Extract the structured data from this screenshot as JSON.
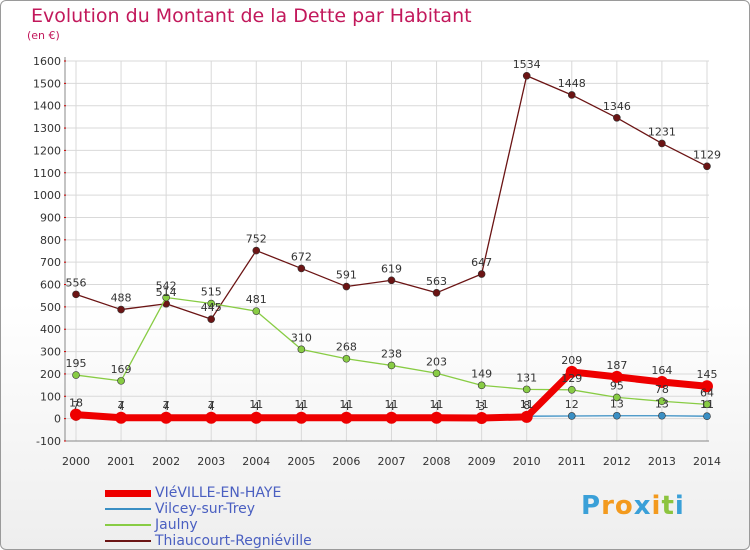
{
  "title": "Evolution du Montant de la Dette par Habitant",
  "subtitle": "(en €)",
  "brand": {
    "text": "Proxiti",
    "letters": [
      "P",
      "r",
      "o",
      "x",
      "i",
      "t",
      "i"
    ],
    "colors": [
      "#3aa0d8",
      "#f39a1e",
      "#f39a1e",
      "#3aa0d8",
      "#f39a1e",
      "#8cc43f",
      "#3aa0d8"
    ]
  },
  "chart_data": {
    "type": "line",
    "title": "Evolution du Montant de la Dette par Habitant",
    "ylabel": "(en €)",
    "xlabel": "",
    "x": [
      2000,
      2001,
      2002,
      2003,
      2004,
      2005,
      2006,
      2007,
      2008,
      2009,
      2010,
      2011,
      2012,
      2013,
      2014
    ],
    "ylim": [
      -100,
      1600
    ],
    "yticks": [
      -100,
      0,
      100,
      200,
      300,
      400,
      500,
      600,
      700,
      800,
      900,
      1000,
      1100,
      1200,
      1300,
      1400,
      1500,
      1600
    ],
    "grid": true,
    "legend": "bottom-left",
    "series": [
      {
        "name": "VIéVILLE-EN-HAYE",
        "color": "#ee0000",
        "values": [
          18,
          4,
          4,
          4,
          4,
          4,
          4,
          4,
          4,
          3,
          8,
          209,
          187,
          164,
          145
        ],
        "labels": [
          "18",
          "4",
          "4",
          "4",
          "4",
          "4",
          "4",
          "4",
          "4",
          "3",
          "8",
          "209",
          "187",
          "164",
          "145"
        ]
      },
      {
        "name": "Vilcey-sur-Trey",
        "color": "#3a8fc4",
        "values": [
          7,
          7,
          7,
          7,
          11,
          11,
          11,
          11,
          11,
          11,
          11,
          12,
          13,
          13,
          11
        ],
        "labels": [
          "7",
          "7",
          "7",
          "7",
          "11",
          "11",
          "11",
          "11",
          "11",
          "11",
          "11",
          "12",
          "13",
          "13",
          "11"
        ]
      },
      {
        "name": "Jaulny",
        "color": "#88cc44",
        "values": [
          195,
          169,
          542,
          515,
          481,
          310,
          268,
          238,
          203,
          149,
          131,
          129,
          95,
          78,
          64
        ],
        "labels": [
          "195",
          "169",
          "542",
          "515",
          "481",
          "310",
          "268",
          "238",
          "203",
          "149",
          "131",
          "129",
          "95",
          "78",
          "64"
        ]
      },
      {
        "name": "Thiaucourt-Regniéville",
        "color": "#6b1414",
        "values": [
          556,
          488,
          514,
          445,
          752,
          672,
          591,
          619,
          563,
          647,
          1534,
          1448,
          1346,
          1231,
          1129
        ],
        "labels": [
          "556",
          "488",
          "514",
          "445",
          "752",
          "672",
          "591",
          "619",
          "563",
          "647",
          "1534",
          "1448",
          "1346",
          "1231",
          "1129"
        ]
      }
    ]
  }
}
